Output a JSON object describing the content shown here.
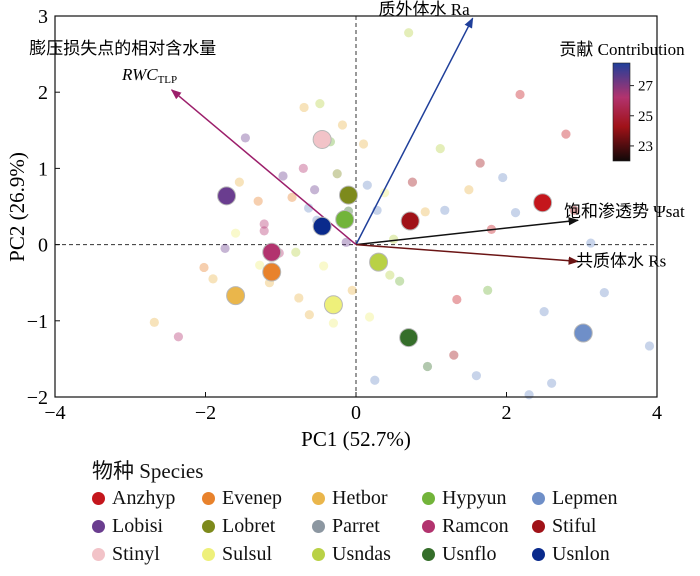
{
  "chart_data": {
    "type": "scatter",
    "subtype": "pca-biplot",
    "xlabel": "PC1 (52.7%)",
    "ylabel": "PC2 (26.9%)",
    "xlim": [
      -4,
      4
    ],
    "ylim": [
      -2,
      3
    ],
    "xticks": [
      -4,
      -2,
      0,
      2,
      4
    ],
    "yticks": [
      -2,
      -1,
      0,
      1,
      2,
      3
    ],
    "grid": false,
    "reference_lines": "dashed lines at x=0 and y=0",
    "vectors": [
      {
        "label": "质外体水 Ra",
        "x": 1.55,
        "y": 2.97,
        "color": "#1f3f9a"
      },
      {
        "label": "膨压损失点的相对含水量",
        "sublabel": "RWC",
        "subscript": "TLP",
        "x": -2.45,
        "y": 2.03,
        "color": "#9c1f6b"
      },
      {
        "label": "饱和渗透势 Ψsat",
        "x": 2.95,
        "y": 0.32,
        "color": "#111111"
      },
      {
        "label": "共质体水 Rs",
        "x": 2.95,
        "y": -0.22,
        "color": "#6b1414"
      }
    ],
    "species_centroids": [
      {
        "name": "Anzhyp",
        "color": "#c4161c",
        "x": 2.48,
        "y": 0.55
      },
      {
        "name": "Evenep",
        "color": "#e8822c",
        "x": -1.12,
        "y": -0.36
      },
      {
        "name": "Hetbor",
        "color": "#eab64b",
        "x": -1.6,
        "y": -0.67
      },
      {
        "name": "Hypyun",
        "color": "#72b43a",
        "x": -0.15,
        "y": 0.33
      },
      {
        "name": "Lepmen",
        "color": "#6f8fc8",
        "x": 3.02,
        "y": -1.16
      },
      {
        "name": "Lobisi",
        "color": "#6a3d8f",
        "x": -1.72,
        "y": 0.64
      },
      {
        "name": "Lobret",
        "color": "#7d8a1c",
        "x": -0.1,
        "y": 0.65
      },
      {
        "name": "Parret",
        "color": "#8c97a1",
        "x": null,
        "y": null
      },
      {
        "name": "Ramcon",
        "color": "#b2336e",
        "x": -1.12,
        "y": -0.1
      },
      {
        "name": "Stiful",
        "color": "#a01218",
        "x": 0.72,
        "y": 0.31
      },
      {
        "name": "Stinyl",
        "color": "#f2c3c8",
        "x": -0.45,
        "y": 1.38
      },
      {
        "name": "Sulsul",
        "color": "#eef07a",
        "x": -0.3,
        "y": -0.79
      },
      {
        "name": "Usndas",
        "color": "#b9d146",
        "x": 0.3,
        "y": -0.23
      },
      {
        "name": "Usnflo",
        "color": "#356e2a",
        "x": 0.7,
        "y": -1.22
      },
      {
        "name": "Usnlon",
        "color": "#0a2a8c",
        "x": -0.45,
        "y": 0.24
      }
    ],
    "observations": [
      {
        "x": -2.68,
        "y": -1.02,
        "c": "#eab64b"
      },
      {
        "x": -2.36,
        "y": -1.21,
        "c": "#b2336e"
      },
      {
        "x": -2.02,
        "y": -0.3,
        "c": "#e8822c"
      },
      {
        "x": -1.9,
        "y": -0.45,
        "c": "#eab64b"
      },
      {
        "x": -1.74,
        "y": -0.05,
        "c": "#6a3d8f"
      },
      {
        "x": -1.6,
        "y": 0.15,
        "c": "#eef07a"
      },
      {
        "x": -1.55,
        "y": 0.82,
        "c": "#eab64b"
      },
      {
        "x": -1.47,
        "y": 1.4,
        "c": "#6a3d8f"
      },
      {
        "x": -1.3,
        "y": 0.57,
        "c": "#e8822c"
      },
      {
        "x": -1.28,
        "y": -0.27,
        "c": "#eef07a"
      },
      {
        "x": -1.22,
        "y": 0.18,
        "c": "#b2336e"
      },
      {
        "x": -1.15,
        "y": -0.5,
        "c": "#eab64b"
      },
      {
        "x": -1.02,
        "y": -0.11,
        "c": "#b2336e"
      },
      {
        "x": -0.97,
        "y": 0.9,
        "c": "#6a3d8f"
      },
      {
        "x": -0.85,
        "y": 0.62,
        "c": "#e8822c"
      },
      {
        "x": -0.8,
        "y": -0.1,
        "c": "#b9d146"
      },
      {
        "x": -0.76,
        "y": -0.7,
        "c": "#eab64b"
      },
      {
        "x": -0.7,
        "y": 1.0,
        "c": "#b2336e"
      },
      {
        "x": -0.69,
        "y": 1.8,
        "c": "#eab64b"
      },
      {
        "x": -0.63,
        "y": 0.48,
        "c": "#6f8fc8"
      },
      {
        "x": -0.62,
        "y": -0.92,
        "c": "#eab64b"
      },
      {
        "x": -0.55,
        "y": 0.72,
        "c": "#6a3d8f"
      },
      {
        "x": -0.52,
        "y": 0.32,
        "c": "#6f8fc8"
      },
      {
        "x": -0.48,
        "y": 1.85,
        "c": "#b9d146"
      },
      {
        "x": -0.43,
        "y": -0.28,
        "c": "#eef07a"
      },
      {
        "x": -0.34,
        "y": 1.35,
        "c": "#72b43a"
      },
      {
        "x": -0.3,
        "y": -1.03,
        "c": "#eef07a"
      },
      {
        "x": -0.25,
        "y": 0.93,
        "c": "#7d8a1c"
      },
      {
        "x": -0.18,
        "y": 1.57,
        "c": "#eab64b"
      },
      {
        "x": -0.13,
        "y": 0.03,
        "c": "#6a3d8f"
      },
      {
        "x": -0.1,
        "y": 0.44,
        "c": "#356e2a"
      },
      {
        "x": -0.05,
        "y": -0.6,
        "c": "#eab64b"
      },
      {
        "x": 0.1,
        "y": 1.32,
        "c": "#eab64b"
      },
      {
        "x": 0.15,
        "y": 0.78,
        "c": "#6f8fc8"
      },
      {
        "x": 0.18,
        "y": -0.95,
        "c": "#eef07a"
      },
      {
        "x": 0.25,
        "y": -1.78,
        "c": "#6f8fc8"
      },
      {
        "x": 0.28,
        "y": 0.45,
        "c": "#6f8fc8"
      },
      {
        "x": 0.38,
        "y": 0.68,
        "c": "#eef07a"
      },
      {
        "x": 0.45,
        "y": -0.4,
        "c": "#b9d146"
      },
      {
        "x": 0.5,
        "y": 0.07,
        "c": "#b9d146"
      },
      {
        "x": 0.58,
        "y": -0.48,
        "c": "#72b43a"
      },
      {
        "x": 0.75,
        "y": 0.82,
        "c": "#a01218"
      },
      {
        "x": 0.92,
        "y": 0.43,
        "c": "#eab64b"
      },
      {
        "x": 0.95,
        "y": -1.6,
        "c": "#356e2a"
      },
      {
        "x": 1.12,
        "y": 1.26,
        "c": "#b9d146"
      },
      {
        "x": 1.18,
        "y": 0.45,
        "c": "#6f8fc8"
      },
      {
        "x": 1.3,
        "y": -1.45,
        "c": "#a01218"
      },
      {
        "x": 1.34,
        "y": -0.72,
        "c": "#c4161c"
      },
      {
        "x": 1.5,
        "y": 0.72,
        "c": "#eab64b"
      },
      {
        "x": 1.6,
        "y": -1.72,
        "c": "#6f8fc8"
      },
      {
        "x": 1.65,
        "y": 1.07,
        "c": "#a01218"
      },
      {
        "x": 1.75,
        "y": -0.6,
        "c": "#72b43a"
      },
      {
        "x": 1.8,
        "y": 0.2,
        "c": "#c4161c"
      },
      {
        "x": 1.95,
        "y": 0.88,
        "c": "#6f8fc8"
      },
      {
        "x": 2.12,
        "y": 0.42,
        "c": "#6f8fc8"
      },
      {
        "x": 2.18,
        "y": 1.97,
        "c": "#c4161c"
      },
      {
        "x": 2.3,
        "y": -1.97,
        "c": "#6f8fc8"
      },
      {
        "x": 2.5,
        "y": -0.88,
        "c": "#6f8fc8"
      },
      {
        "x": 2.6,
        "y": -1.82,
        "c": "#6f8fc8"
      },
      {
        "x": 2.79,
        "y": 1.45,
        "c": "#c4161c"
      },
      {
        "x": 2.9,
        "y": 0.45,
        "c": "#a01218"
      },
      {
        "x": 3.12,
        "y": 0.02,
        "c": "#6f8fc8"
      },
      {
        "x": 3.3,
        "y": -0.63,
        "c": "#6f8fc8"
      },
      {
        "x": 3.9,
        "y": -1.33,
        "c": "#6f8fc8"
      },
      {
        "x": 0.7,
        "y": 2.78,
        "c": "#b9d146"
      },
      {
        "x": -1.22,
        "y": 0.27,
        "c": "#b2336e"
      }
    ],
    "colorbar": {
      "title": "贡献 Contribution",
      "ticks": [
        23,
        25,
        27
      ],
      "range": [
        22,
        28.5
      ],
      "colors": [
        "#100808",
        "#a01218",
        "#b2336e",
        "#1f3f9a"
      ]
    },
    "legend": {
      "title": "物种 Species",
      "placement": "bottom"
    }
  }
}
